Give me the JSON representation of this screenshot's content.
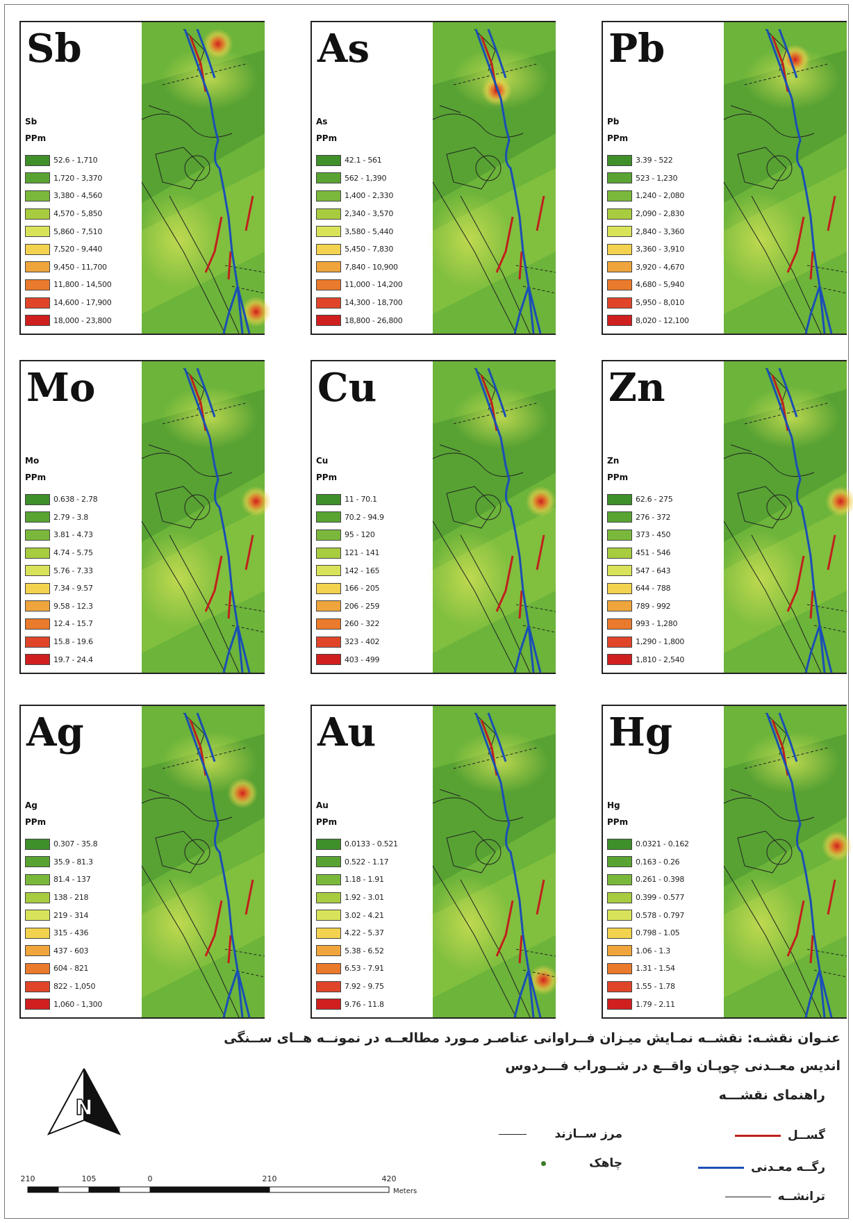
{
  "panels": [
    {
      "element": "Sb",
      "unit": "PPm",
      "ranges": [
        "52.6 - 1,710",
        "1,720 - 3,370",
        "3,380 - 4,560",
        "4,570 - 5,850",
        "5,860 - 7,510",
        "7,520 - 9,440",
        "9,450 - 11,700",
        "11,800 - 14,500",
        "14,600 - 17,900",
        "18,000 - 23,800"
      ],
      "hotspots": [
        [
          0.62,
          0.07
        ],
        [
          0.93,
          0.93
        ]
      ]
    },
    {
      "element": "As",
      "unit": "PPm",
      "ranges": [
        "42.1 - 561",
        "562 - 1,390",
        "1,400 - 2,330",
        "2,340 - 3,570",
        "3,580 - 5,440",
        "5,450 - 7,830",
        "7,840 - 10,900",
        "11,000 - 14,200",
        "14,300 - 18,700",
        "18,800 - 26,800"
      ],
      "hotspots": [
        [
          0.52,
          0.22
        ]
      ]
    },
    {
      "element": "Pb",
      "unit": "PPm",
      "ranges": [
        "3.39 - 522",
        "523 - 1,230",
        "1,240 - 2,080",
        "2,090 - 2,830",
        "2,840 - 3,360",
        "3,360 - 3,910",
        "3,920 - 4,670",
        "4,680 - 5,940",
        "5,950 - 8,010",
        "8,020 - 12,100"
      ],
      "hotspots": [
        [
          0.58,
          0.12
        ]
      ]
    },
    {
      "element": "Mo",
      "unit": "PPm",
      "ranges": [
        "0.638 - 2.78",
        "2.79 - 3.8",
        "3.81 - 4.73",
        "4.74 - 5.75",
        "5.76 - 7.33",
        "7.34 - 9.57",
        "9.58 - 12.3",
        "12.4 - 15.7",
        "15.8 - 19.6",
        "19.7 - 24.4"
      ],
      "hotspots": [
        [
          0.93,
          0.45
        ]
      ]
    },
    {
      "element": "Cu",
      "unit": "PPm",
      "ranges": [
        "11 - 70.1",
        "70.2 - 94.9",
        "95 - 120",
        "121 - 141",
        "142 - 165",
        "166 - 205",
        "206 - 259",
        "260 - 322",
        "323 - 402",
        "403 - 499"
      ],
      "hotspots": [
        [
          0.88,
          0.45
        ]
      ]
    },
    {
      "element": "Zn",
      "unit": "PPm",
      "ranges": [
        "62.6 - 275",
        "276 - 372",
        "373 - 450",
        "451 - 546",
        "547 - 643",
        "644 - 788",
        "789 - 992",
        "993 - 1,280",
        "1,290 - 1,800",
        "1,810 - 2,540"
      ],
      "hotspots": [
        [
          0.95,
          0.45
        ]
      ]
    },
    {
      "element": "Ag",
      "unit": "PPm",
      "ranges": [
        "0.307 - 35.8",
        "35.9 - 81.3",
        "81.4 - 137",
        "138 - 218",
        "219 - 314",
        "315 - 436",
        "437 - 603",
        "604 - 821",
        "822 - 1,050",
        "1,060 - 1,300"
      ],
      "hotspots": [
        [
          0.82,
          0.28
        ]
      ]
    },
    {
      "element": "Au",
      "unit": "PPm",
      "ranges": [
        "0.0133 - 0.521",
        "0.522 - 1.17",
        "1.18 - 1.91",
        "1.92 - 3.01",
        "3.02 - 4.21",
        "4.22 - 5.37",
        "5.38 - 6.52",
        "6.53 - 7.91",
        "7.92 - 9.75",
        "9.76 - 11.8"
      ],
      "hotspots": [
        [
          0.9,
          0.88
        ]
      ]
    },
    {
      "element": "Hg",
      "unit": "PPm",
      "ranges": [
        "0.0321 - 0.162",
        "0.163 - 0.26",
        "0.261 - 0.398",
        "0.399 - 0.577",
        "0.578 - 0.797",
        "0.798 - 1.05",
        "1.06 - 1.3",
        "1.31 - 1.54",
        "1.55 - 1.78",
        "1.79 - 2.11"
      ],
      "hotspots": [
        [
          0.92,
          0.45
        ]
      ]
    }
  ],
  "legend_colors": [
    "#3f8f2a",
    "#58a332",
    "#7ab83b",
    "#a8cc3f",
    "#d8e35a",
    "#f2d24e",
    "#efa53b",
    "#ea7a2c",
    "#e0452a",
    "#d01f1f"
  ],
  "map_base_colors": [
    "#4f9a30",
    "#6cb43a",
    "#8fc642",
    "#c6dc52"
  ],
  "caption_line1": "عنـوان نقشـه: نقشــه نمـایش میـزان فــراوانی عناصـر مـورد مطالعــه در نمونــه هــای ســنگی",
  "caption_line2": "اندیس معــدنی چوپـان واقــع در شــوراب فـــردوس",
  "key_title": "راهنمای نقشـــه",
  "key_items": {
    "fault": "گســل",
    "vein": "رگــه معـدنی",
    "trench": "ترانشــه",
    "formation_boundary": "مرز ســازند",
    "well": "چاهک"
  },
  "key_colors": {
    "fault": "#c0201c",
    "vein": "#1a4fb5",
    "trench": "#222222",
    "boundary": "#222222",
    "well": "#3d7a2a"
  },
  "scale": {
    "labels": [
      "210",
      "105",
      "0",
      "210",
      "420"
    ],
    "unit": "Meters"
  }
}
